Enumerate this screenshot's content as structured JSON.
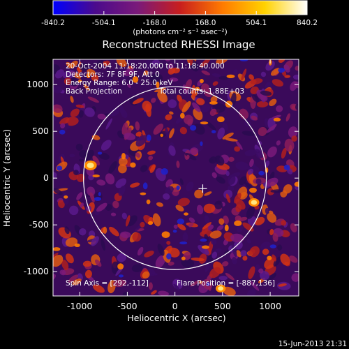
{
  "colorbar": {
    "ticks": [
      "-840.2",
      "-504.1",
      "-168.0",
      "168.0",
      "504.1",
      "840.2"
    ],
    "min": -840.2,
    "max": 840.2,
    "unit_text": "(photons cm⁻² s⁻¹ asec⁻²)",
    "colors": [
      "#0000ff",
      "#4b0a8c",
      "#7a1a7a",
      "#c81e1e",
      "#ff7a00",
      "#ffd200",
      "#ffffff"
    ]
  },
  "chart_data": {
    "type": "heatmap",
    "title": "Reconstructed RHESSI Image",
    "xlabel": "Heliocentric X (arcsec)",
    "ylabel": "Heliocentric Y (arcsec)",
    "xlim": [
      -1280,
      1300
    ],
    "ylim": [
      -1260,
      1270
    ],
    "x_ticks": [
      "-1000",
      "-500",
      "0",
      "500",
      "1000"
    ],
    "y_ticks": [
      "1000",
      "500",
      "0",
      "-500",
      "-1000"
    ],
    "x_tick_values": [
      -1000,
      -500,
      0,
      500,
      1000
    ],
    "y_tick_values": [
      1000,
      500,
      0,
      -500,
      -1000
    ],
    "annotations": [
      "20-Oct-2004 11:18:20.000 to 11:18:40.000",
      "Detectors: 7F 8F 9F, Att 0",
      "Energy Range: 6.0 - 25.0 keV",
      "Back Projection",
      "Total counts: 1.88E+03"
    ],
    "bottom_left_text": "Spin Axis = [292,-112]",
    "bottom_right_text": "Flare Position = [-887,136]",
    "solar_disk": {
      "center": [
        0,
        0
      ],
      "radius_arcsec": 960
    },
    "flare_marker": {
      "x": 292,
      "y": -112
    },
    "bright_sources": [
      {
        "x": -887,
        "y": 136,
        "level": 1.0
      },
      {
        "x": 830,
        "y": -260,
        "level": 0.85
      },
      {
        "x": 480,
        "y": -1180,
        "level": 0.8
      }
    ]
  },
  "footer_date": "15-Jun-2013 21:31"
}
